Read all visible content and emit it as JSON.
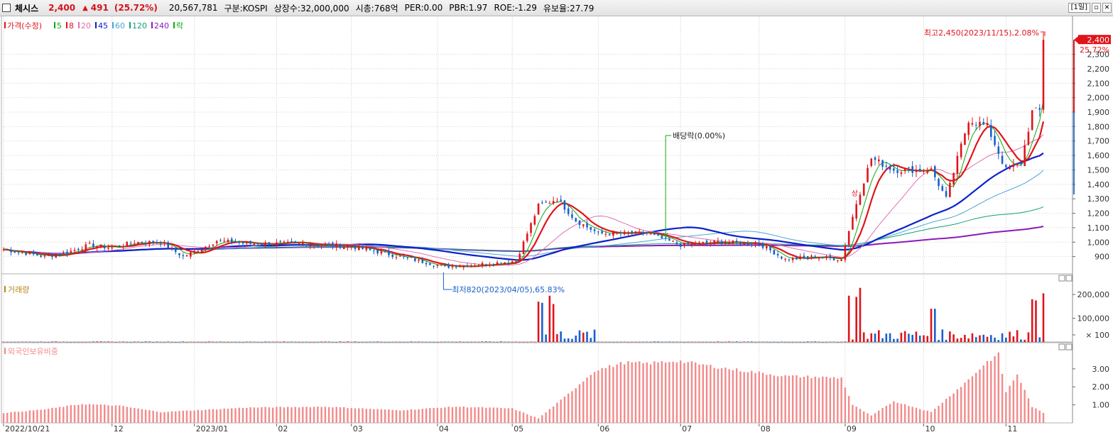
{
  "header": {
    "stock_name": "체시스",
    "price": "2,400",
    "change_arrow": "▲",
    "change": "491",
    "change_pct": "(25.72%)",
    "volume": "20,567,781",
    "market": "구분:KOSPI",
    "shares": "상장수:32,000,000",
    "market_cap": "시총:768억",
    "per": "PER:0.00",
    "pbr": "PBR:1.97",
    "roe": "ROE:-1.29",
    "float_ratio": "유보율:27.79",
    "period": "[1일]",
    "window_buttons": [
      "▫",
      "✕"
    ]
  },
  "colors": {
    "up": "#e0141b",
    "down": "#1a5fcc",
    "ma5": "#11a811",
    "ma8": "#e0141b",
    "ma20": "#e070b0",
    "ma45": "#0a21c8",
    "ma60": "#4aa6d6",
    "ma120": "#11a07a",
    "ma240": "#8a1bb8",
    "foreign": "#f28a8a",
    "volume_label": "#b8861b"
  },
  "legend": [
    {
      "label": "가격(수정)",
      "color": "#e0141b"
    },
    {
      "label": "5",
      "color": "#11a811"
    },
    {
      "label": "8",
      "color": "#e0141b"
    },
    {
      "label": "20",
      "color": "#e070b0"
    },
    {
      "label": "45",
      "color": "#0a21c8"
    },
    {
      "label": "60",
      "color": "#4aa6d6"
    },
    {
      "label": "120",
      "color": "#11a07a"
    },
    {
      "label": "240",
      "color": "#8a1bb8"
    },
    {
      "label": "락",
      "color": "#11a811"
    }
  ],
  "chart_data": [
    {
      "type": "candlestick",
      "title": "가격(수정)",
      "x_axis_labels": [
        "2022/10/21",
        "12",
        "2023/01",
        "02",
        "03",
        "04",
        "05",
        "06",
        "07",
        "08",
        "09",
        "10",
        "11"
      ],
      "y_ticks": [
        "2,300",
        "2,200",
        "2,100",
        "2,000",
        "1,900",
        "1,800",
        "1,700",
        "1,600",
        "1,500",
        "1,400",
        "1,300",
        "1,200",
        "1,100",
        "1,000",
        "900"
      ],
      "ylim": [
        800,
        2450
      ],
      "current_price_label": "2,400",
      "current_pct_label": "25.72%",
      "annotations": {
        "high": "최고2,450(2023/11/15),2.08%",
        "low": "최저820(2023/04/05),65.83%",
        "dividend": "배당락(0.00%)",
        "event": "상"
      },
      "close_path_anchors": [
        {
          "date": "2022/10/21",
          "close": 950
        },
        {
          "date": "2022/11/07",
          "close": 900
        },
        {
          "date": "2022/11/15",
          "close": 930
        },
        {
          "date": "2022/11/23",
          "close": 980
        },
        {
          "date": "2022/12/01",
          "close": 960
        },
        {
          "date": "2022/12/09",
          "close": 1000
        },
        {
          "date": "2022/12/20",
          "close": 1000
        },
        {
          "date": "2022/12/28",
          "close": 900
        },
        {
          "date": "2023/01/05",
          "close": 970
        },
        {
          "date": "2023/01/10",
          "close": 1010
        },
        {
          "date": "2023/01/20",
          "close": 990
        },
        {
          "date": "2023/02/10",
          "close": 990
        },
        {
          "date": "2023/03/01",
          "close": 970
        },
        {
          "date": "2023/03/20",
          "close": 900
        },
        {
          "date": "2023/04/05",
          "close": 830
        },
        {
          "date": "2023/04/20",
          "close": 850
        },
        {
          "date": "2023/05/02",
          "close": 870
        },
        {
          "date": "2023/05/10",
          "close": 1250
        },
        {
          "date": "2023/05/17",
          "close": 1300
        },
        {
          "date": "2023/05/24",
          "close": 1150
        },
        {
          "date": "2023/06/01",
          "close": 1060
        },
        {
          "date": "2023/06/20",
          "close": 1060
        },
        {
          "date": "2023/07/01",
          "close": 980
        },
        {
          "date": "2023/07/15",
          "close": 1000
        },
        {
          "date": "2023/08/01",
          "close": 990
        },
        {
          "date": "2023/08/10",
          "close": 880
        },
        {
          "date": "2023/08/22",
          "close": 900
        },
        {
          "date": "2023/08/31",
          "close": 880
        },
        {
          "date": "2023/09/04",
          "close": 1080
        },
        {
          "date": "2023/09/06",
          "close": 1270
        },
        {
          "date": "2023/09/12",
          "close": 1580
        },
        {
          "date": "2023/09/20",
          "close": 1500
        },
        {
          "date": "2023/10/04",
          "close": 1500
        },
        {
          "date": "2023/10/10",
          "close": 1300
        },
        {
          "date": "2023/10/18",
          "close": 1850
        },
        {
          "date": "2023/10/25",
          "close": 1800
        },
        {
          "date": "2023/11/01",
          "close": 1500
        },
        {
          "date": "2023/11/07",
          "close": 1550
        },
        {
          "date": "2023/11/10",
          "close": 1900
        },
        {
          "date": "2023/11/14",
          "close": 1910
        },
        {
          "date": "2023/11/15",
          "close": 2400
        }
      ]
    },
    {
      "type": "bar",
      "title": "거래량",
      "y_ticks": [
        "200,000",
        "100,000",
        "× 100"
      ],
      "ylim": [
        0,
        245000
      ],
      "spikes": [
        {
          "date": "2023/05/10",
          "value": 170000
        },
        {
          "date": "2023/05/11",
          "value": 165000
        },
        {
          "date": "2023/05/15",
          "value": 195000
        },
        {
          "date": "2023/05/16",
          "value": 160000
        },
        {
          "date": "2023/09/04",
          "value": 195000
        },
        {
          "date": "2023/09/06",
          "value": 190000
        },
        {
          "date": "2023/09/07",
          "value": 228000
        },
        {
          "date": "2023/10/04",
          "value": 140000
        },
        {
          "date": "2023/10/05",
          "value": 140000
        },
        {
          "date": "2023/11/10",
          "value": 180000
        },
        {
          "date": "2023/11/13",
          "value": 175000
        },
        {
          "date": "2023/11/15",
          "value": 205000
        }
      ]
    },
    {
      "type": "bar",
      "title": "외국인보유비중",
      "y_ticks": [
        "3.00",
        "2.00",
        "1.00"
      ],
      "ylim": [
        0,
        3.9
      ],
      "anchors": [
        {
          "date": "2022/10/21",
          "value": 0.55
        },
        {
          "date": "2022/11/07",
          "value": 0.75
        },
        {
          "date": "2022/11/20",
          "value": 1.05
        },
        {
          "date": "2022/12/05",
          "value": 0.95
        },
        {
          "date": "2022/12/20",
          "value": 0.6
        },
        {
          "date": "2023/01/20",
          "value": 0.85
        },
        {
          "date": "2023/02/20",
          "value": 0.9
        },
        {
          "date": "2023/03/20",
          "value": 0.7
        },
        {
          "date": "2023/04/10",
          "value": 0.9
        },
        {
          "date": "2023/05/01",
          "value": 0.8
        },
        {
          "date": "2023/05/10",
          "value": 0.25
        },
        {
          "date": "2023/05/20",
          "value": 1.6
        },
        {
          "date": "2023/05/31",
          "value": 2.9
        },
        {
          "date": "2023/06/10",
          "value": 3.35
        },
        {
          "date": "2023/06/20",
          "value": 3.3
        },
        {
          "date": "2023/06/30",
          "value": 3.45
        },
        {
          "date": "2023/07/20",
          "value": 3.0
        },
        {
          "date": "2023/08/10",
          "value": 2.6
        },
        {
          "date": "2023/08/31",
          "value": 2.5
        },
        {
          "date": "2023/09/05",
          "value": 1.0
        },
        {
          "date": "2023/09/12",
          "value": 0.4
        },
        {
          "date": "2023/09/20",
          "value": 1.2
        },
        {
          "date": "2023/10/04",
          "value": 0.6
        },
        {
          "date": "2023/10/18",
          "value": 2.4
        },
        {
          "date": "2023/10/25",
          "value": 3.4
        },
        {
          "date": "2023/10/28",
          "value": 3.8
        },
        {
          "date": "2023/11/01",
          "value": 1.7
        },
        {
          "date": "2023/11/06",
          "value": 2.7
        },
        {
          "date": "2023/11/10",
          "value": 0.9
        },
        {
          "date": "2023/11/15",
          "value": 0.55
        }
      ]
    }
  ]
}
